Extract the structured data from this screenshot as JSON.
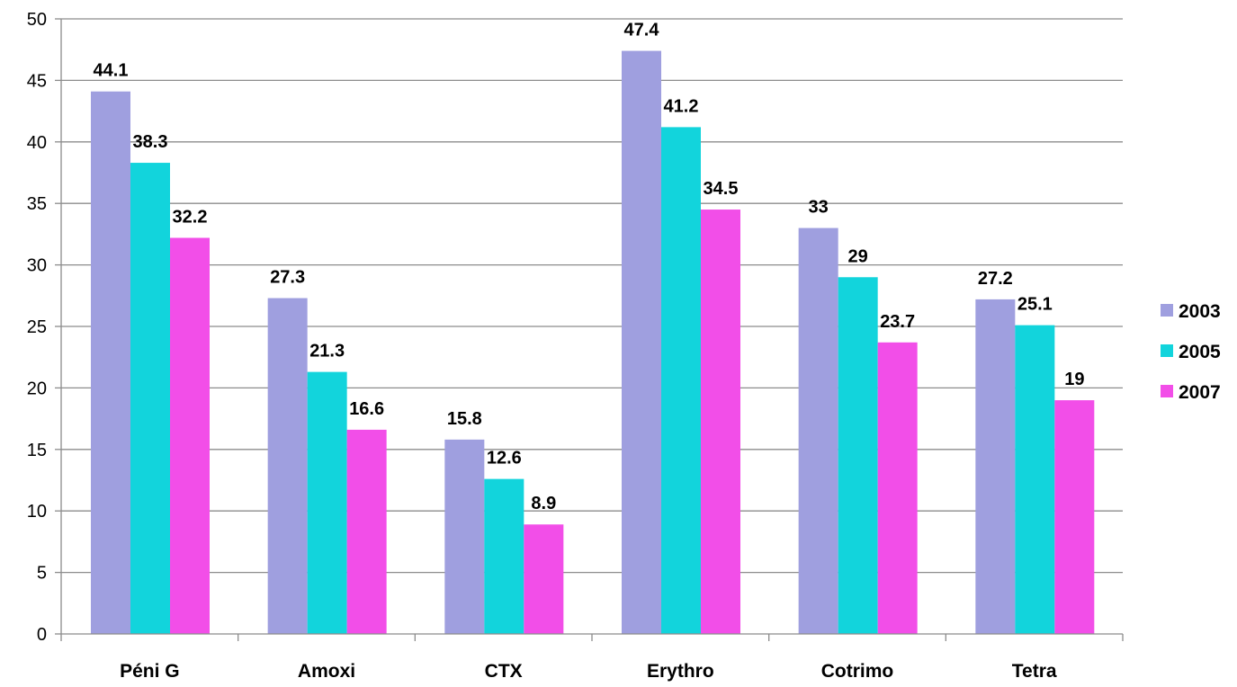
{
  "chart_data": {
    "type": "bar",
    "title": "",
    "xlabel": "",
    "ylabel": "",
    "categories": [
      "Péni G",
      "Amoxi",
      "CTX",
      "Erythro",
      "Cotrimo",
      "Tetra"
    ],
    "series": [
      {
        "name": "2003",
        "color": "#9f9fdf",
        "values": [
          44.1,
          27.3,
          15.8,
          47.4,
          33,
          27.2
        ],
        "labels": [
          "44.1",
          "27.3",
          "15.8",
          "47.4",
          "33",
          "27.2"
        ]
      },
      {
        "name": "2005",
        "color": "#12d4dc",
        "values": [
          38.3,
          21.3,
          12.6,
          41.2,
          29,
          25.1
        ],
        "labels": [
          "38.3",
          "21.3",
          "12.6",
          "41.2",
          "29",
          "25.1"
        ]
      },
      {
        "name": "2007",
        "color": "#f24ee8",
        "values": [
          32.2,
          16.6,
          8.9,
          34.5,
          23.7,
          19
        ],
        "labels": [
          "32.2",
          "16.6",
          "8.9",
          "34.5",
          "23.7",
          "19"
        ]
      }
    ],
    "ylim": [
      0,
      50
    ],
    "yticks": [
      0,
      5,
      10,
      15,
      20,
      25,
      30,
      35,
      40,
      45,
      50
    ],
    "grid": true,
    "legend_position": "right"
  }
}
